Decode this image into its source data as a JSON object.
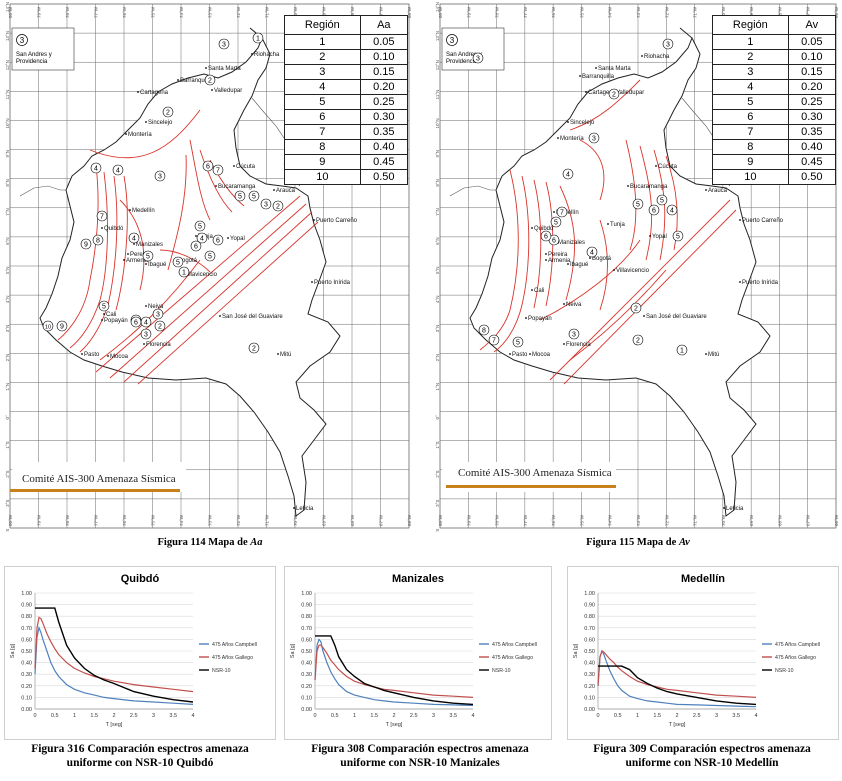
{
  "maps": [
    {
      "caption_prefix": "Figura 114 Mapa de ",
      "caption_var": "Aa",
      "table": {
        "head_region": "Región",
        "head_value": "Aa",
        "rows": [
          [
            "1",
            "0.05"
          ],
          [
            "2",
            "0.10"
          ],
          [
            "3",
            "0.15"
          ],
          [
            "4",
            "0.20"
          ],
          [
            "5",
            "0.25"
          ],
          [
            "6",
            "0.30"
          ],
          [
            "7",
            "0.35"
          ],
          [
            "8",
            "0.40"
          ],
          [
            "9",
            "0.45"
          ],
          [
            "10",
            "0.50"
          ]
        ]
      },
      "committee": "Comité AIS-300 Amenaza Sísmica",
      "inset_number": "3",
      "inset_label": "San Andres y Providencia",
      "cities": [
        "Riohacha",
        "Santa Marta",
        "Barranquilla",
        "Valledupar",
        "Cartagena",
        "Sincelejo",
        "Montería",
        "Cúcuta",
        "Bucaramanga",
        "Arauca",
        "Medellín",
        "Quibdó",
        "Tunja",
        "Yopal",
        "Manizales",
        "Pereira",
        "Armenia",
        "Ibagué",
        "Bogotá",
        "Villavicencio",
        "Puerto Carreño",
        "Puerto Inírida",
        "Cali",
        "Neiva",
        "Popayán",
        "San José del Guaviare",
        "Mitú",
        "Pasto",
        "Mocoa",
        "Florencia",
        "Leticia"
      ],
      "region_labels": [
        "3",
        "2",
        "1",
        "2",
        "3",
        "4",
        "4",
        "5",
        "6",
        "7",
        "5",
        "5",
        "4",
        "4",
        "3",
        "2",
        "5",
        "7",
        "6",
        "8",
        "9",
        "10",
        "9",
        "5",
        "6",
        "5",
        "4",
        "4",
        "3",
        "3",
        "2",
        "2",
        "1",
        "6",
        "5"
      ],
      "lon_ticks": [
        "80°W",
        "79°W",
        "78°W",
        "77°W",
        "76°W",
        "75°W",
        "74°W",
        "73°W",
        "72°W",
        "71°W",
        "70°W",
        "69°W",
        "68°W",
        "67°W",
        "66°W"
      ],
      "lat_ticks": [
        "14°N",
        "13°N",
        "12°N",
        "11°N",
        "10°N",
        "9°N",
        "8°N",
        "7°N",
        "6°N",
        "5°N",
        "4°N",
        "3°N",
        "2°N",
        "1°N",
        "0°",
        "1°S",
        "2°S",
        "3°S",
        "4°S"
      ]
    },
    {
      "caption_prefix": "Figura 115 Mapa de ",
      "caption_var": "Av",
      "table": {
        "head_region": "Región",
        "head_value": "Av",
        "rows": [
          [
            "1",
            "0.05"
          ],
          [
            "2",
            "0.10"
          ],
          [
            "3",
            "0.15"
          ],
          [
            "4",
            "0.20"
          ],
          [
            "5",
            "0.25"
          ],
          [
            "6",
            "0.30"
          ],
          [
            "7",
            "0.35"
          ],
          [
            "8",
            "0.40"
          ],
          [
            "9",
            "0.45"
          ],
          [
            "10",
            "0.50"
          ]
        ]
      },
      "committee": "Comité AIS-300 Amenaza Sísmica",
      "inset_number": "3",
      "inset_label": "San Andres y Providencia",
      "cities": [
        "Riohacha",
        "Santa Marta",
        "Barranquilla",
        "Valledupar",
        "Cartagena",
        "Sincelejo",
        "Montería",
        "Cúcuta",
        "Bucaramanga",
        "Arauca",
        "Medellín",
        "Quibdó",
        "Tunja",
        "Yopal",
        "Manizales",
        "Pereira",
        "Armenia",
        "Ibagué",
        "Bogotá",
        "Villavicencio",
        "Puerto Carreño",
        "Puerto Inírida",
        "Cali",
        "Neiva",
        "Popayán",
        "San José del Guaviare",
        "Mitú",
        "Pasto",
        "Mocoa",
        "Florencia",
        "Leticia"
      ],
      "region_labels": [
        "3",
        "2",
        "3",
        "4",
        "5",
        "7",
        "6",
        "5",
        "4",
        "5",
        "6",
        "4",
        "3",
        "2",
        "1",
        "8",
        "7",
        "5",
        "3",
        "2",
        "5",
        "6"
      ],
      "lon_ticks": [
        "80°W",
        "79°W",
        "78°W",
        "77°W",
        "76°W",
        "75°W",
        "74°W",
        "73°W",
        "72°W",
        "71°W",
        "70°W",
        "69°W",
        "68°W",
        "67°W",
        "66°W"
      ],
      "lat_ticks": [
        "14°N",
        "13°N",
        "12°N",
        "11°N",
        "10°N",
        "9°N",
        "8°N",
        "7°N",
        "6°N",
        "5°N",
        "4°N",
        "3°N",
        "2°N",
        "1°N",
        "0°",
        "1°S",
        "2°S",
        "3°S",
        "4°S"
      ]
    }
  ],
  "chart_data": [
    {
      "type": "line",
      "title": "Quibdó",
      "xlabel": "T [seg]",
      "ylabel": "Sa [g]",
      "xlim": [
        0,
        4
      ],
      "ylim": [
        0,
        1.0
      ],
      "xticks": [
        "0",
        "0.5",
        "1",
        "1.5",
        "2",
        "2.5",
        "3",
        "3.5",
        "4"
      ],
      "yticks": [
        "0.00",
        "0.10",
        "0.20",
        "0.30",
        "0.40",
        "0.50",
        "0.60",
        "0.70",
        "0.80",
        "0.90",
        "1.00"
      ],
      "x": [
        0,
        0.05,
        0.1,
        0.15,
        0.2,
        0.3,
        0.4,
        0.5,
        0.6,
        0.8,
        1.0,
        1.25,
        1.5,
        1.75,
        2.0,
        2.5,
        3.0,
        3.5,
        4.0
      ],
      "series": [
        {
          "name": "475 Años Campbell",
          "color": "#4f81bd",
          "values": [
            0.3,
            0.62,
            0.7,
            0.66,
            0.6,
            0.5,
            0.4,
            0.33,
            0.28,
            0.21,
            0.17,
            0.14,
            0.12,
            0.1,
            0.09,
            0.07,
            0.06,
            0.05,
            0.04
          ]
        },
        {
          "name": "475 Años Gallego",
          "color": "#c0504d",
          "values": [
            0.35,
            0.7,
            0.79,
            0.78,
            0.74,
            0.65,
            0.58,
            0.52,
            0.47,
            0.4,
            0.35,
            0.31,
            0.28,
            0.26,
            0.24,
            0.21,
            0.19,
            0.17,
            0.15
          ]
        },
        {
          "name": "NSR-10",
          "color": "#000000",
          "values": [
            0.87,
            0.87,
            0.87,
            0.87,
            0.87,
            0.87,
            0.87,
            0.87,
            0.75,
            0.55,
            0.44,
            0.35,
            0.29,
            0.25,
            0.22,
            0.15,
            0.11,
            0.08,
            0.06
          ]
        }
      ]
    },
    {
      "type": "line",
      "title": "Manizales",
      "xlabel": "T [seg]",
      "ylabel": "Sa [g]",
      "xlim": [
        0,
        4
      ],
      "ylim": [
        0,
        1.0
      ],
      "xticks": [
        "0",
        "0.5",
        "1",
        "1.5",
        "2",
        "2.5",
        "3",
        "3.5",
        "4"
      ],
      "yticks": [
        "0.00",
        "0.10",
        "0.20",
        "0.30",
        "0.40",
        "0.50",
        "0.60",
        "0.70",
        "0.80",
        "0.90",
        "1.00"
      ],
      "x": [
        0,
        0.05,
        0.1,
        0.15,
        0.2,
        0.3,
        0.4,
        0.5,
        0.6,
        0.8,
        1.0,
        1.25,
        1.5,
        1.75,
        2.0,
        2.5,
        3.0,
        3.5,
        4.0
      ],
      "series": [
        {
          "name": "475 Años Campbell",
          "color": "#4f81bd",
          "values": [
            0.25,
            0.55,
            0.6,
            0.58,
            0.5,
            0.4,
            0.32,
            0.26,
            0.21,
            0.15,
            0.12,
            0.1,
            0.08,
            0.07,
            0.06,
            0.05,
            0.04,
            0.035,
            0.03
          ]
        },
        {
          "name": "475 Años Gallego",
          "color": "#c0504d",
          "values": [
            0.25,
            0.5,
            0.55,
            0.55,
            0.53,
            0.48,
            0.42,
            0.38,
            0.34,
            0.28,
            0.24,
            0.21,
            0.19,
            0.17,
            0.16,
            0.14,
            0.12,
            0.11,
            0.1
          ]
        },
        {
          "name": "NSR-10",
          "color": "#000000",
          "values": [
            0.63,
            0.63,
            0.63,
            0.63,
            0.63,
            0.63,
            0.63,
            0.55,
            0.45,
            0.34,
            0.28,
            0.22,
            0.19,
            0.16,
            0.14,
            0.1,
            0.07,
            0.05,
            0.04
          ]
        }
      ]
    },
    {
      "type": "line",
      "title": "Medellín",
      "xlabel": "T [seg]",
      "ylabel": "Sa [g]",
      "xlim": [
        0,
        4
      ],
      "ylim": [
        0,
        1.0
      ],
      "xticks": [
        "0",
        "0.5",
        "1",
        "1.5",
        "2",
        "2.5",
        "3",
        "3.5",
        "4"
      ],
      "yticks": [
        "0.00",
        "0.10",
        "0.20",
        "0.30",
        "0.40",
        "0.50",
        "0.60",
        "0.70",
        "0.80",
        "0.90",
        "1.00"
      ],
      "x": [
        0,
        0.05,
        0.1,
        0.15,
        0.2,
        0.3,
        0.4,
        0.5,
        0.6,
        0.8,
        1.0,
        1.25,
        1.5,
        1.75,
        2.0,
        2.5,
        3.0,
        3.5,
        4.0
      ],
      "series": [
        {
          "name": "475 Años Campbell",
          "color": "#4f81bd",
          "values": [
            0.2,
            0.45,
            0.5,
            0.47,
            0.42,
            0.33,
            0.26,
            0.2,
            0.16,
            0.11,
            0.09,
            0.07,
            0.06,
            0.05,
            0.04,
            0.035,
            0.03,
            0.025,
            0.02
          ]
        },
        {
          "name": "475 Años Gallego",
          "color": "#c0504d",
          "values": [
            0.2,
            0.45,
            0.5,
            0.49,
            0.47,
            0.43,
            0.4,
            0.36,
            0.33,
            0.28,
            0.24,
            0.21,
            0.19,
            0.17,
            0.16,
            0.14,
            0.12,
            0.11,
            0.1
          ]
        },
        {
          "name": "NSR-10",
          "color": "#000000",
          "values": [
            0.37,
            0.37,
            0.37,
            0.37,
            0.37,
            0.37,
            0.37,
            0.37,
            0.37,
            0.34,
            0.27,
            0.22,
            0.18,
            0.15,
            0.13,
            0.1,
            0.07,
            0.05,
            0.04
          ]
        }
      ]
    }
  ],
  "chart_captions": [
    {
      "line1": "Figura 316 Comparación espectros amenaza",
      "line2": "uniforme con NSR-10 Quibdó"
    },
    {
      "line1": "Figura 308 Comparación espectros amenaza",
      "line2": "uniforme con NSR-10 Manizales"
    },
    {
      "line1": "Figura 309 Comparación espectros amenaza",
      "line2": "uniforme con NSR-10 Medellín"
    }
  ],
  "colors": {
    "contour": "#d9342b",
    "grid": "#6a6a6a",
    "coast": "#222222",
    "orange": "#c7801c"
  }
}
